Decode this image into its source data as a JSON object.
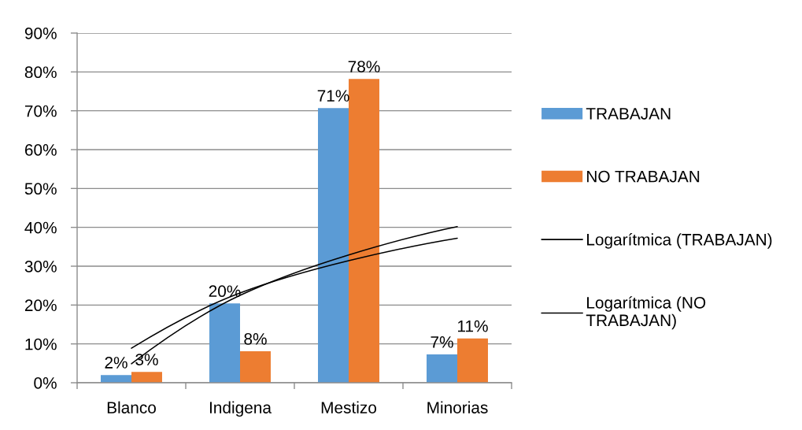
{
  "chart_data": {
    "type": "bar",
    "categories": [
      "Blanco",
      "Indigena",
      "Mestizo",
      "Minorias"
    ],
    "series": [
      {
        "name": "TRABAJAN",
        "color": "#5b9bd5",
        "values": [
          2.0,
          20.4,
          70.7,
          7.3
        ],
        "value_labels": [
          "2%",
          "20%",
          "71%",
          "7%"
        ]
      },
      {
        "name": "NO TRABAJAN",
        "color": "#ed7d31",
        "values": [
          2.8,
          8.1,
          78.2,
          11.4
        ],
        "value_labels": [
          "3%",
          "8%",
          "78%",
          "11%"
        ]
      },
      {
        "name": "Logarítmica (TRABAJAN)",
        "type": "line",
        "color": "#000000",
        "values": [
          8.9,
          23.1,
          31.4,
          37.2
        ]
      },
      {
        "name": "Logarítmica (NO TRABAJAN)",
        "type": "line",
        "color": "#000000",
        "values": [
          4.9,
          22.5,
          32.9,
          40.2
        ]
      }
    ],
    "ylim": [
      0,
      90
    ],
    "yticks": [
      {
        "value": 0,
        "label": "0%"
      },
      {
        "value": 10,
        "label": "10%"
      },
      {
        "value": 20,
        "label": "20%"
      },
      {
        "value": 30,
        "label": "30%"
      },
      {
        "value": 40,
        "label": "40%"
      },
      {
        "value": 50,
        "label": "50%"
      },
      {
        "value": 60,
        "label": "60%"
      },
      {
        "value": 70,
        "label": "70%"
      },
      {
        "value": 80,
        "label": "80%"
      },
      {
        "value": 90,
        "label": "90%"
      }
    ],
    "grid": "y",
    "legend": "right"
  }
}
